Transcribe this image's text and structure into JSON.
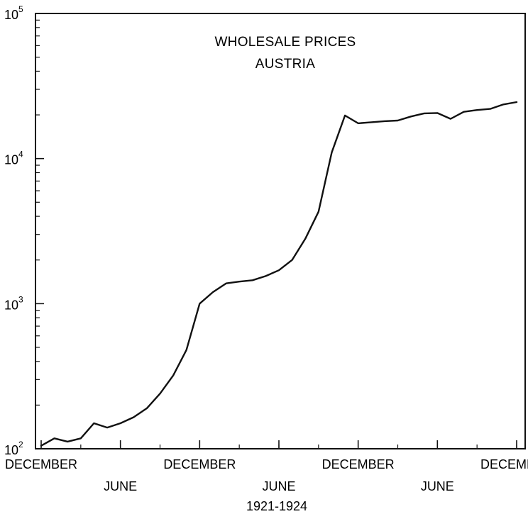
{
  "chart_data": {
    "type": "line",
    "title": [
      "WHOLESALE PRICES",
      "AUSTRIA"
    ],
    "xlabel": "1921-1924",
    "ylabel": "",
    "y_scale": "log",
    "ylim": [
      100,
      100000
    ],
    "y_ticks": [
      {
        "value": 100,
        "base": "10",
        "exp": "2"
      },
      {
        "value": 1000,
        "base": "10",
        "exp": "3"
      },
      {
        "value": 10000,
        "base": "10",
        "exp": "4"
      },
      {
        "value": 100000,
        "base": "10",
        "exp": "5"
      }
    ],
    "xlim": [
      "1921-12",
      "1924-12"
    ],
    "x_ticks_top_row": [
      {
        "date": "1921-12",
        "label": "DECEMBER"
      },
      {
        "date": "1922-12",
        "label": "DECEMBER"
      },
      {
        "date": "1923-12",
        "label": "DECEMBER"
      },
      {
        "date": "1924-12",
        "label": "DECEMBER"
      }
    ],
    "x_ticks_bottom_row": [
      {
        "date": "1922-06",
        "label": "JUNE"
      },
      {
        "date": "1923-06",
        "label": "JUNE"
      },
      {
        "date": "1924-06",
        "label": "JUNE"
      }
    ],
    "grid": false,
    "line_color": "#111111",
    "series": [
      {
        "x": [
          "1921-12",
          "1922-01",
          "1922-02",
          "1922-03",
          "1922-04",
          "1922-05",
          "1922-06",
          "1922-07",
          "1922-08",
          "1922-09",
          "1922-10",
          "1922-11",
          "1922-12",
          "1923-01",
          "1923-02",
          "1923-03",
          "1923-04",
          "1923-05",
          "1923-06",
          "1923-07",
          "1923-08",
          "1923-09",
          "1923-10",
          "1923-11",
          "1923-12",
          "1924-01",
          "1924-02",
          "1924-03",
          "1924-04",
          "1924-05",
          "1924-06",
          "1924-07",
          "1924-08",
          "1924-09",
          "1924-10",
          "1924-11",
          "1924-12"
        ],
        "y": [
          105,
          118,
          112,
          118,
          150,
          140,
          150,
          165,
          190,
          240,
          320,
          480,
          1000,
          1200,
          1380,
          1420,
          1450,
          1550,
          1700,
          2000,
          2800,
          4300,
          11000,
          19800,
          17500,
          17800,
          18100,
          18300,
          19500,
          20500,
          20600,
          18800,
          21000,
          21600,
          22000,
          23600,
          24500
        ]
      }
    ]
  }
}
